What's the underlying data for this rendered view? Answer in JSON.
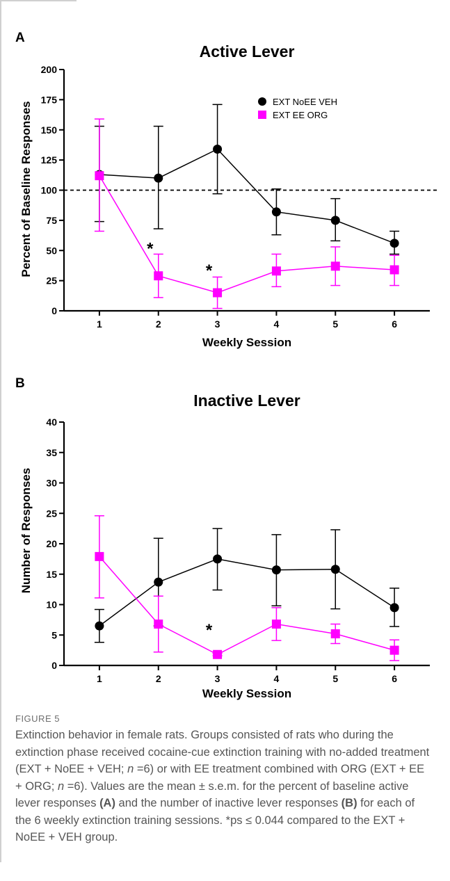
{
  "colors": {
    "series1": "#000000",
    "series2": "#ff00ff",
    "caption_text": "#555555",
    "frame": "#cfcfcf"
  },
  "chart_data": [
    {
      "panel": "A",
      "type": "line",
      "title": "Active Lever",
      "xlabel": "Weekly Session",
      "ylabel": "Percent of Baseline Responses",
      "x": [
        1,
        2,
        3,
        4,
        5,
        6
      ],
      "xlim": [
        0.4,
        6.6
      ],
      "ylim": [
        0,
        200
      ],
      "yticks": [
        0,
        25,
        50,
        75,
        100,
        125,
        150,
        175,
        200
      ],
      "reference_line": {
        "y": 100,
        "style": "dashed"
      },
      "legend": {
        "position": "top-right"
      },
      "series": [
        {
          "name": "EXT NoEE VEH",
          "marker": "circle",
          "color": "#000000",
          "values": [
            113,
            110,
            134,
            82,
            75,
            56
          ],
          "err_low": [
            74,
            68,
            97,
            63,
            58,
            47
          ],
          "err_high": [
            153,
            153,
            171,
            101,
            93,
            66
          ]
        },
        {
          "name": "EXT EE ORG",
          "marker": "square",
          "color": "#ff00ff",
          "values": [
            112,
            29,
            15,
            33,
            37,
            34
          ],
          "err_low": [
            66,
            11,
            2,
            20,
            21,
            21
          ],
          "err_high": [
            159,
            47,
            28,
            47,
            53,
            46
          ]
        }
      ],
      "annotations": [
        {
          "x": 2,
          "y": 55,
          "text": "*"
        },
        {
          "x": 3,
          "y": 37,
          "text": "*"
        }
      ]
    },
    {
      "panel": "B",
      "type": "line",
      "title": "Inactive Lever",
      "xlabel": "Weekly Session",
      "ylabel": "Number of Responses",
      "x": [
        1,
        2,
        3,
        4,
        5,
        6
      ],
      "xlim": [
        0.4,
        6.6
      ],
      "ylim": [
        0,
        40
      ],
      "yticks": [
        0,
        5,
        10,
        15,
        20,
        25,
        30,
        35,
        40
      ],
      "series": [
        {
          "name": "EXT NoEE VEH",
          "marker": "circle",
          "color": "#000000",
          "values": [
            6.5,
            13.7,
            17.5,
            15.7,
            15.8,
            9.5
          ],
          "err_low": [
            3.8,
            6.5,
            12.4,
            9.8,
            9.3,
            6.4
          ],
          "err_high": [
            9.2,
            20.9,
            22.5,
            21.5,
            22.3,
            12.7
          ]
        },
        {
          "name": "EXT EE ORG",
          "marker": "square",
          "color": "#ff00ff",
          "values": [
            17.9,
            6.8,
            1.8,
            6.8,
            5.2,
            2.5
          ],
          "err_low": [
            11.1,
            2.2,
            1.6,
            4.1,
            3.6,
            0.8
          ],
          "err_high": [
            24.6,
            11.4,
            2.0,
            9.5,
            6.8,
            4.2
          ]
        }
      ],
      "annotations": [
        {
          "x": 3,
          "y": 6.5,
          "text": "*"
        }
      ]
    }
  ],
  "caption": {
    "figure_label": "FIGURE 5",
    "p1": "Extinction behavior in female rats. Groups consisted of rats who during the extinction phase received cocaine-cue extinction training with no-added treatment (EXT + NoEE + VEH; ",
    "n1": "n",
    "p2": " =6) or with EE treatment combined with ORG (EXT + EE + ORG; ",
    "n2": "n",
    "p3": " =6). Values are the mean ± s.e.m. for the percent of baseline active lever responses ",
    "bA": "(A)",
    "p4": " and the number of inactive lever responses ",
    "bB": "(B)",
    "p5": " for each of the 6 weekly extinction training sessions. *ps ≤ 0.044 compared to the EXT + NoEE + VEH group."
  }
}
